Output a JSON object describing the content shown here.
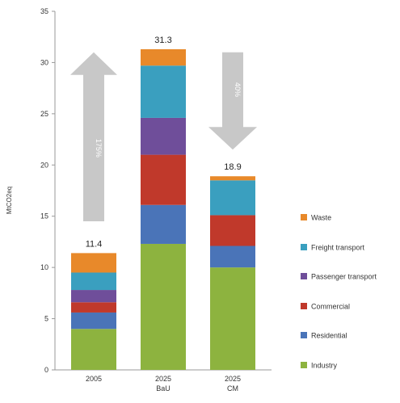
{
  "chart_data": {
    "type": "bar",
    "stacked": true,
    "ylabel": "MtCO2eq",
    "ylim": [
      0,
      35
    ],
    "yticks": [
      0,
      5,
      10,
      15,
      20,
      25,
      30,
      35
    ],
    "categories": [
      {
        "line1": "2005",
        "line2": ""
      },
      {
        "line1": "2025",
        "line2": "BaU"
      },
      {
        "line1": "2025",
        "line2": "CM"
      }
    ],
    "totals": [
      "11.4",
      "31.3",
      "18.9"
    ],
    "series": [
      {
        "name": "Industry",
        "color": "#8db33f",
        "values": [
          4.0,
          12.3,
          10.0
        ]
      },
      {
        "name": "Residential",
        "color": "#4a74b8",
        "values": [
          1.6,
          3.8,
          2.1
        ]
      },
      {
        "name": "Commercial",
        "color": "#c0392b",
        "values": [
          1.0,
          4.9,
          3.0
        ]
      },
      {
        "name": "Passenger transport",
        "color": "#6f4e9a",
        "values": [
          1.2,
          3.6,
          0.0
        ]
      },
      {
        "name": "Freight transport",
        "color": "#3a9fbf",
        "values": [
          1.7,
          5.1,
          3.4
        ]
      },
      {
        "name": "Waste",
        "color": "#e8892a",
        "values": [
          1.9,
          1.6,
          0.4
        ]
      }
    ],
    "annotations": [
      {
        "text": "175%",
        "direction": "up",
        "from_category": 0,
        "to_category": 1
      },
      {
        "text": "40%",
        "direction": "down",
        "from_category": 1,
        "to_category": 2
      }
    ],
    "legend_position": "right",
    "grid": false
  }
}
